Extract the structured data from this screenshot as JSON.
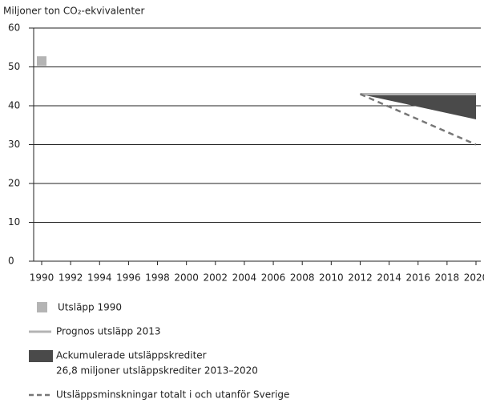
{
  "chart_data": {
    "type": "line",
    "ylabel": "Miljoner ton CO₂-ekvivalenter",
    "xlim": [
      1990,
      2020
    ],
    "xticks": [
      1990,
      1992,
      1994,
      1996,
      1998,
      2000,
      2002,
      2004,
      2006,
      2008,
      2010,
      2012,
      2014,
      2016,
      2018,
      2020
    ],
    "ylim": [
      0,
      60
    ],
    "yticks": [
      0,
      10,
      20,
      30,
      40,
      50,
      60
    ],
    "grid": true,
    "series": [
      {
        "name": "Utsläpp 1990",
        "color": "#b4b4b4",
        "kind": "marker",
        "x": [
          1990
        ],
        "values": [
          51.5
        ]
      },
      {
        "name": "Prognos utsläpp 2013",
        "color": "#b4b4b4",
        "kind": "line",
        "x": [
          2012,
          2020
        ],
        "values": [
          43,
          43
        ]
      },
      {
        "name": "Ackumulerade utsläppskrediter",
        "description": "26,8 miljoner utsläppskrediter 2013–2020",
        "color": "#4a4a4a",
        "kind": "area",
        "x": [
          2012,
          2020
        ],
        "values": [
          43,
          36.5
        ]
      },
      {
        "name": "Utsläppsminskningar totalt i och utanför Sverige",
        "color": "#777777",
        "kind": "dashed",
        "x": [
          2012,
          2020
        ],
        "values": [
          43,
          30
        ]
      }
    ]
  }
}
